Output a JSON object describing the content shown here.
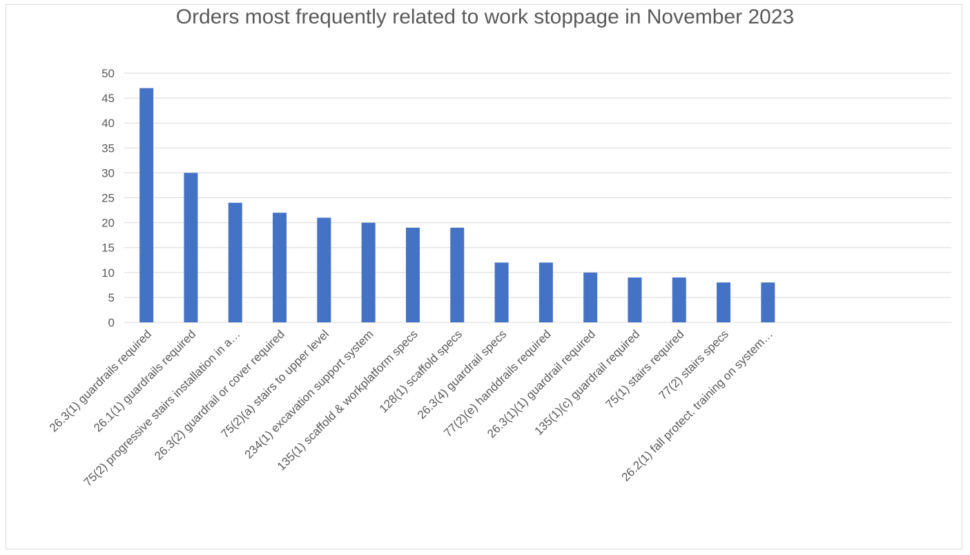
{
  "chart_data": {
    "type": "bar",
    "title": "Orders most frequently related to work stoppage in November 2023",
    "xlabel": "",
    "ylabel": "",
    "ylim": [
      0,
      50
    ],
    "yticks": [
      0,
      5,
      10,
      15,
      20,
      25,
      30,
      35,
      40,
      45,
      50
    ],
    "grid": true,
    "legend": "none",
    "color": "#4472c4",
    "categories": [
      "26.3(1) guardrails required",
      "26.1(1) guardrails required",
      "75(2) progressive stairs installation in a…",
      "26.3(2) guardrail or cover required",
      "75(2)(a) stairs to upper level",
      "234(1) excavation support system",
      "135(1) scaffold & workplatform specs",
      "128(1) scaffold specs",
      "26.3(4) guardrail specs",
      "77(2)(e) handdrails required",
      "26.3(1)(1) guardrail required",
      "135(1)(c) guardrail required",
      "75(1) stairs required",
      "77(2) stairs specs",
      "26.2(1) fall protect. training on system…"
    ],
    "values": [
      47,
      30,
      24,
      22,
      21,
      20,
      19,
      19,
      12,
      12,
      10,
      9,
      9,
      8,
      8
    ]
  }
}
